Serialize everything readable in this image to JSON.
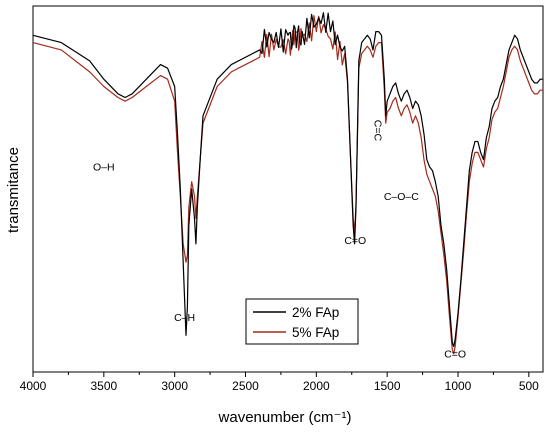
{
  "chart_data": {
    "type": "line",
    "xlabel": "wavenumber (cm⁻¹)",
    "ylabel": "transmitance",
    "xlim": [
      4000,
      400
    ],
    "x_reversed": true,
    "ylim": [
      0,
      100
    ],
    "x_ticks": [
      "4000",
      "3500",
      "3000",
      "2500",
      "2000",
      "1500",
      "1000",
      "500"
    ],
    "y_ticks": [],
    "legend_position": "bottom-center",
    "grid": false,
    "annotations": [
      {
        "text": "O–H",
        "x": 3500,
        "y": 55
      },
      {
        "text": "C–H",
        "x": 2930,
        "y": 14
      },
      {
        "text": "C=O",
        "x": 1725,
        "y": 35
      },
      {
        "text": "C=C",
        "x": 1590,
        "y": 66
      },
      {
        "text": "C–O–C",
        "x": 1400,
        "y": 47
      },
      {
        "text": "C=O",
        "x": 1020,
        "y": 4
      }
    ],
    "series": [
      {
        "name": "2% FAp",
        "color": "#000000",
        "x": [
          4000,
          3800,
          3600,
          3500,
          3400,
          3350,
          3300,
          3200,
          3100,
          3050,
          3000,
          2980,
          2960,
          2940,
          2920,
          2910,
          2900,
          2880,
          2860,
          2850,
          2840,
          2820,
          2800,
          2700,
          2600,
          2500,
          2400,
          2300,
          2200,
          2150,
          2100,
          2000,
          1900,
          1800,
          1780,
          1760,
          1740,
          1730,
          1720,
          1710,
          1700,
          1680,
          1660,
          1640,
          1620,
          1600,
          1580,
          1560,
          1540,
          1520,
          1510,
          1500,
          1480,
          1460,
          1440,
          1420,
          1400,
          1380,
          1360,
          1340,
          1320,
          1300,
          1280,
          1260,
          1240,
          1220,
          1200,
          1180,
          1160,
          1140,
          1120,
          1100,
          1080,
          1060,
          1040,
          1030,
          1020,
          1000,
          980,
          960,
          940,
          920,
          900,
          880,
          860,
          840,
          820,
          800,
          780,
          760,
          740,
          720,
          700,
          680,
          660,
          640,
          620,
          600,
          580,
          560,
          540,
          520,
          500,
          480,
          460,
          440,
          420,
          400
        ],
        "y": [
          92,
          90,
          85,
          80,
          76,
          75,
          76,
          80,
          84,
          83,
          78,
          65,
          50,
          30,
          10,
          18,
          40,
          50,
          42,
          35,
          45,
          58,
          70,
          80,
          84,
          86,
          88,
          90,
          92,
          94,
          93,
          95,
          93,
          89,
          80,
          60,
          40,
          35,
          45,
          65,
          85,
          90,
          91,
          92,
          91,
          88,
          93,
          93,
          92,
          80,
          70,
          74,
          76,
          78,
          79,
          76,
          74,
          76,
          77,
          75,
          72,
          74,
          73,
          70,
          65,
          58,
          56,
          55,
          52,
          48,
          40,
          35,
          28,
          18,
          8,
          7,
          9,
          16,
          25,
          35,
          45,
          55,
          60,
          63,
          63,
          60,
          58,
          64,
          67,
          72,
          74,
          75,
          78,
          80,
          84,
          88,
          90,
          92,
          91,
          88,
          86,
          84,
          82,
          80,
          79,
          79,
          80,
          80
        ]
      },
      {
        "name": "5% FAp",
        "color": "#a52a1a",
        "x": [
          4000,
          3800,
          3600,
          3500,
          3400,
          3350,
          3300,
          3200,
          3100,
          3050,
          3000,
          2980,
          2960,
          2940,
          2920,
          2910,
          2900,
          2880,
          2860,
          2850,
          2840,
          2820,
          2800,
          2700,
          2600,
          2500,
          2400,
          2300,
          2200,
          2150,
          2100,
          2000,
          1900,
          1800,
          1780,
          1760,
          1740,
          1730,
          1720,
          1710,
          1700,
          1680,
          1660,
          1640,
          1620,
          1600,
          1580,
          1560,
          1540,
          1520,
          1510,
          1500,
          1480,
          1460,
          1440,
          1420,
          1400,
          1380,
          1360,
          1340,
          1320,
          1300,
          1280,
          1260,
          1240,
          1220,
          1200,
          1180,
          1160,
          1140,
          1120,
          1100,
          1080,
          1060,
          1040,
          1030,
          1020,
          1000,
          980,
          960,
          940,
          920,
          900,
          880,
          860,
          840,
          820,
          800,
          780,
          760,
          740,
          720,
          700,
          680,
          660,
          640,
          620,
          600,
          580,
          560,
          540,
          520,
          500,
          480,
          460,
          440,
          420,
          400
        ],
        "y": [
          90,
          88,
          82,
          78,
          75,
          74,
          75,
          78,
          81,
          80,
          74,
          60,
          48,
          35,
          30,
          32,
          45,
          52,
          48,
          42,
          48,
          58,
          68,
          78,
          82,
          84,
          86,
          88,
          91,
          93,
          92,
          93,
          91,
          87,
          79,
          60,
          42,
          38,
          46,
          64,
          83,
          87,
          88,
          89,
          88,
          86,
          89,
          90,
          90,
          77,
          68,
          71,
          72,
          74,
          75,
          72,
          70,
          72,
          73,
          71,
          68,
          70,
          68,
          64,
          58,
          54,
          52,
          50,
          48,
          44,
          38,
          32,
          25,
          15,
          6,
          5,
          7,
          15,
          24,
          33,
          43,
          52,
          57,
          60,
          60,
          58,
          56,
          61,
          64,
          69,
          71,
          72,
          75,
          78,
          82,
          86,
          88,
          89,
          88,
          85,
          83,
          81,
          79,
          77,
          76,
          76,
          77,
          77
        ]
      }
    ]
  }
}
